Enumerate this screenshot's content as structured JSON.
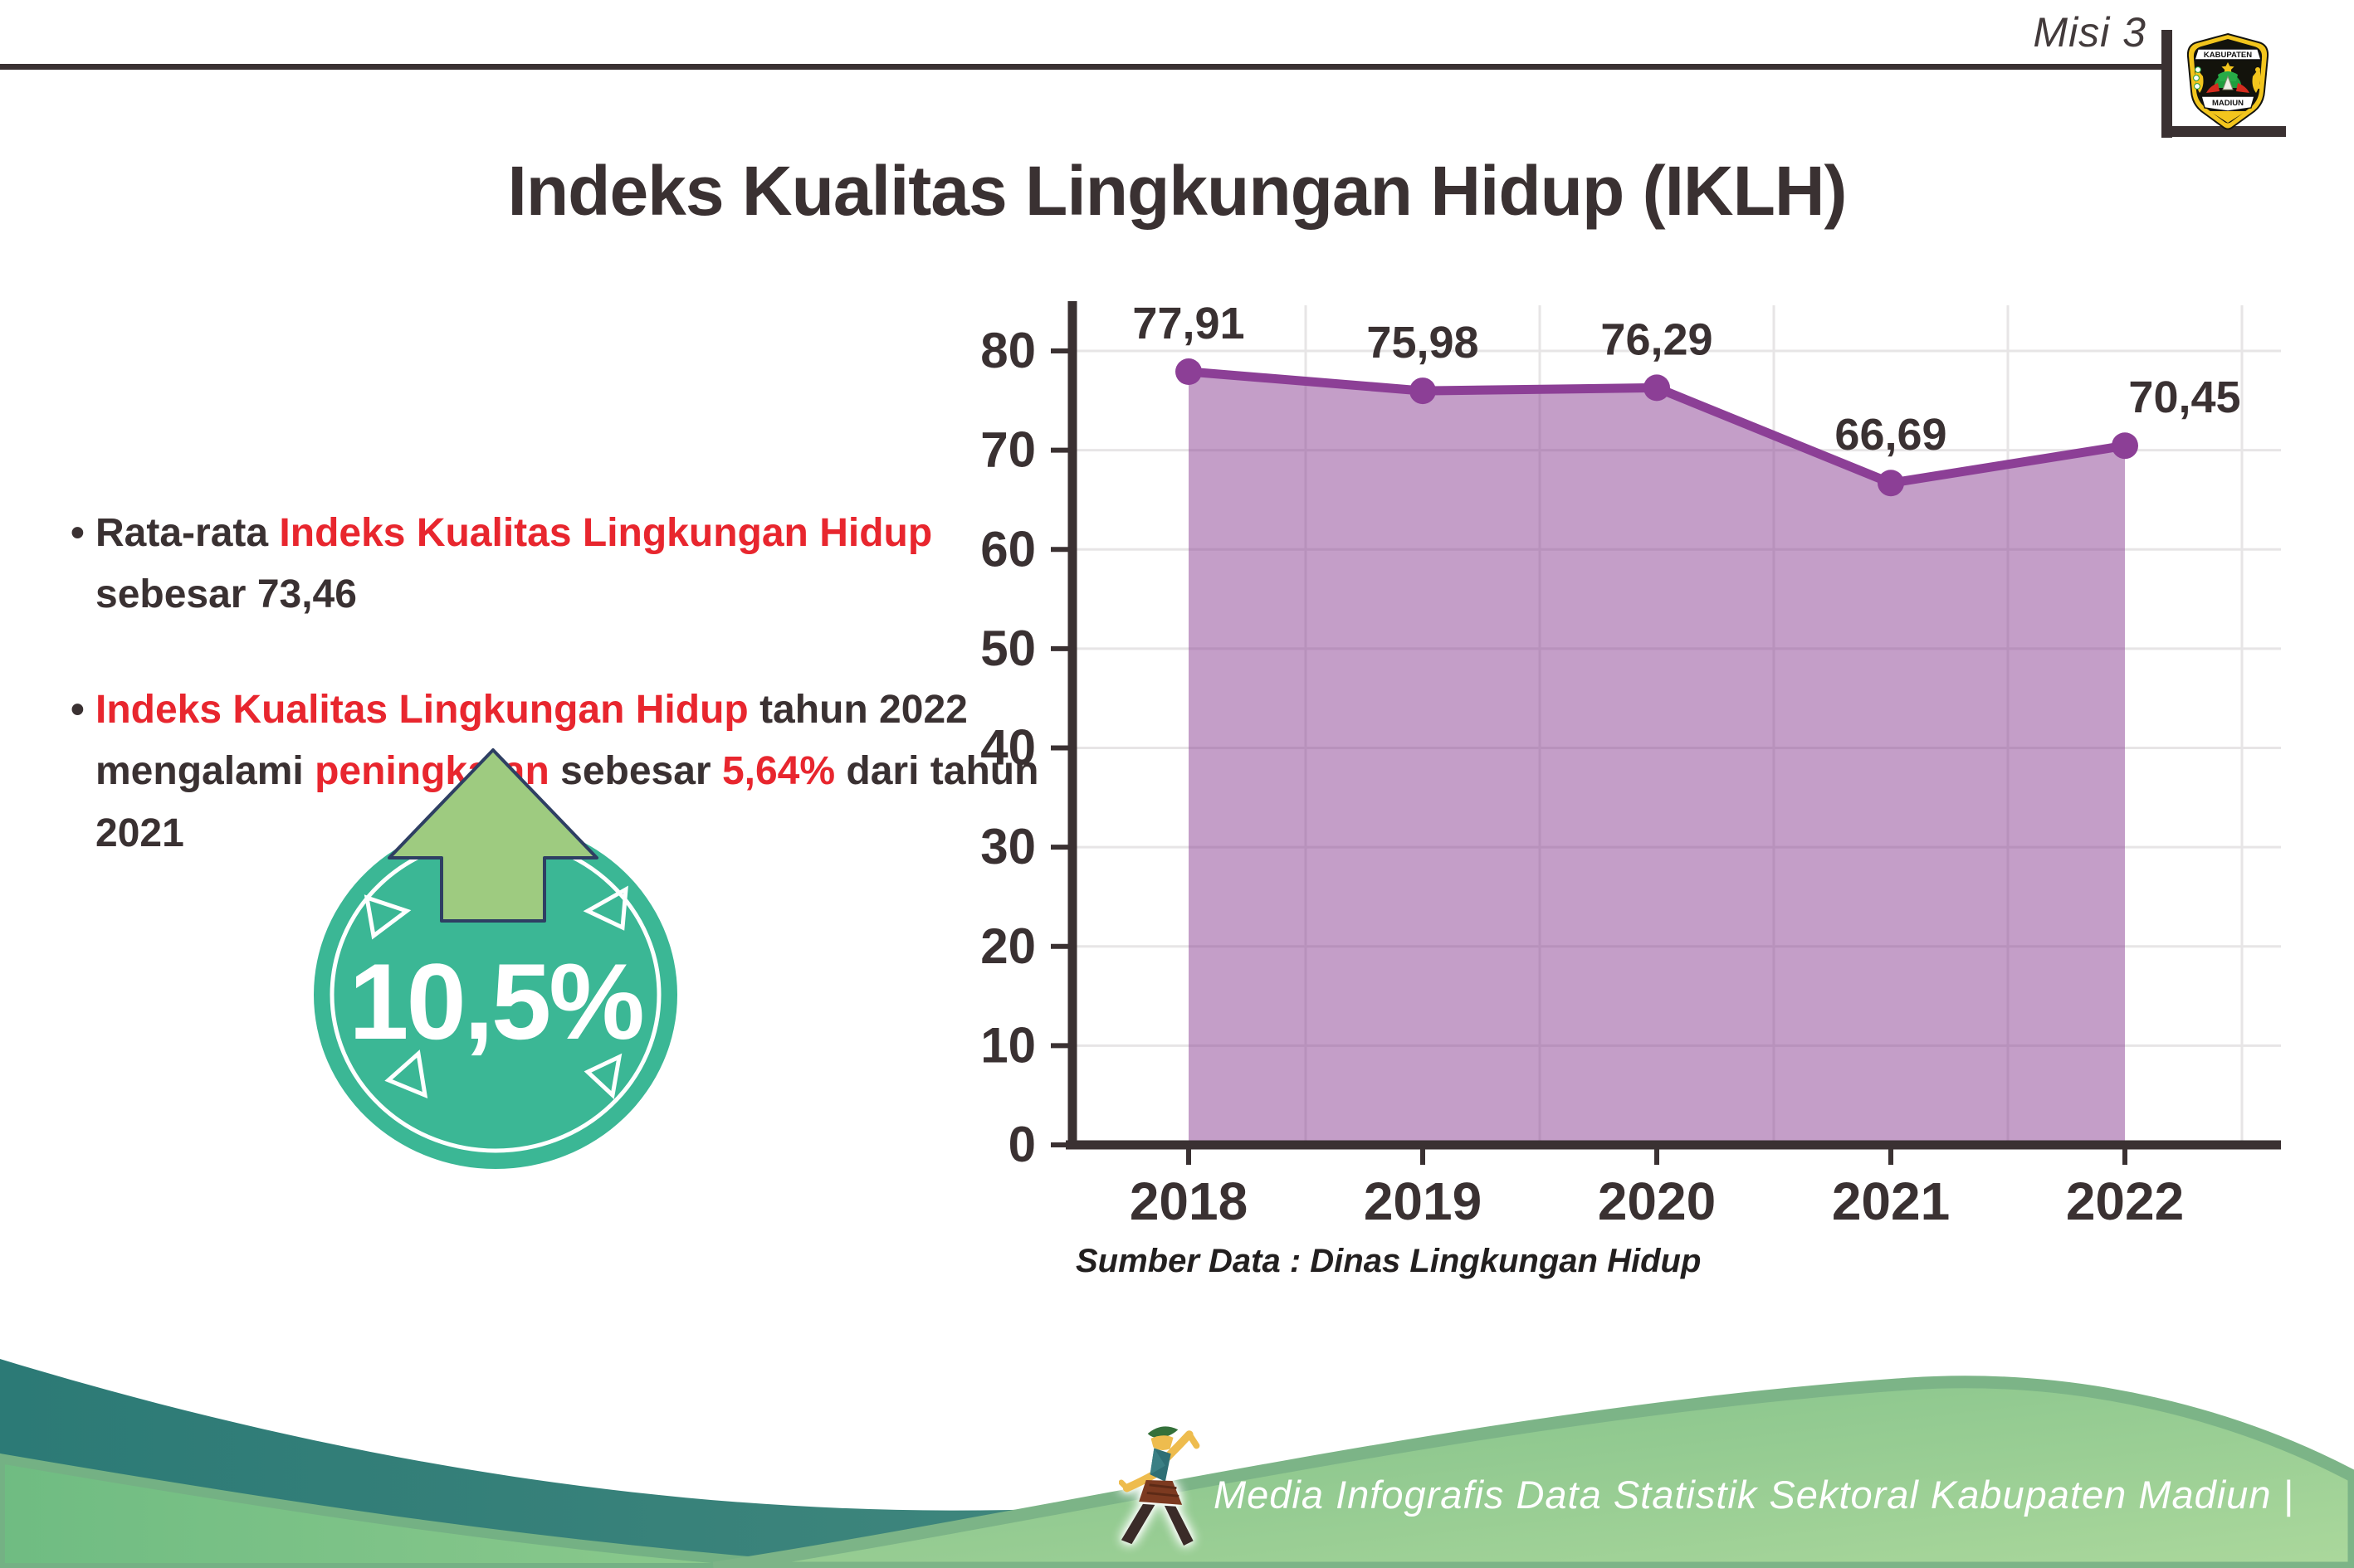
{
  "header": {
    "tag": "Misi 3",
    "title": "Indeks Kualitas Lingkungan Hidup (IKLH)",
    "logo_top_text": "KABUPATEN",
    "logo_bottom_text": "MADIUN"
  },
  "bullets": [
    {
      "parts": [
        {
          "text": "Rata-rata ",
          "c": "dark"
        },
        {
          "text": "Indeks Kualitas Lingkungan Hidup",
          "c": "red"
        },
        {
          "text": " sebesar 73,46",
          "c": "dark"
        }
      ]
    },
    {
      "parts": [
        {
          "text": "Indeks Kualitas Lingkungan Hidup",
          "c": "red"
        },
        {
          "text": " tahun 2022 mengalami ",
          "c": "dark"
        },
        {
          "text": "peningkatan",
          "c": "red"
        },
        {
          "text": " sebesar ",
          "c": "dark"
        },
        {
          "text": "5,64%",
          "c": "red"
        },
        {
          "text": " dari tahun 2021",
          "c": "dark"
        }
      ]
    }
  ],
  "badge": {
    "value": "10,5%",
    "direction": "up",
    "circle_color": "#3bb795",
    "arrow_color": "#9ecb80"
  },
  "chart_data": {
    "type": "area",
    "title": "",
    "categories": [
      "2018",
      "2019",
      "2020",
      "2021",
      "2022"
    ],
    "series": [
      {
        "name": "IKLH",
        "values": [
          77.91,
          75.98,
          76.29,
          66.69,
          70.45
        ]
      }
    ],
    "value_labels": [
      "77,91",
      "75,98",
      "76,29",
      "66,69",
      "70,45"
    ],
    "xlabel": "",
    "ylabel": "",
    "ylim": [
      0,
      80
    ],
    "ytick_step": 10,
    "grid": true,
    "legend": "none",
    "line_color": "#8c3f96",
    "fill_color": "#8e4596",
    "point_color": "#8c3f96",
    "label_color": "#3a3132"
  },
  "source_note": "Sumber Data : Dinas Lingkungan Hidup",
  "footer": {
    "text": "Media Infografis Data Statistik Sektoral Kabupaten Madiun |"
  },
  "colors": {
    "text_dark": "#3a3132",
    "text_red": "#e8262e",
    "footer_teal": "#2c7a76",
    "footer_green": "#8fcb8e",
    "dome_green": "#abd89c"
  }
}
